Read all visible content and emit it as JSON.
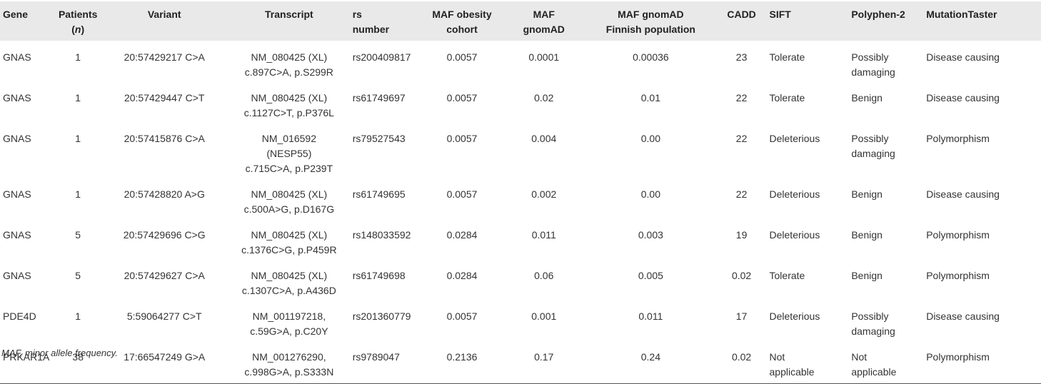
{
  "table": {
    "headers": [
      [
        "Gene"
      ],
      [
        "Patients",
        "(n)"
      ],
      [
        "Variant"
      ],
      [
        "Transcript"
      ],
      [
        "rs",
        "number"
      ],
      [
        "MAF obesity",
        "cohort"
      ],
      [
        "MAF",
        "gnomAD"
      ],
      [
        "MAF gnomAD",
        "Finnish population"
      ],
      [
        "CADD"
      ],
      [
        "SIFT"
      ],
      [
        "Polyphen-2"
      ],
      [
        "MutationTaster"
      ]
    ],
    "rows": [
      [
        [
          "GNAS"
        ],
        [
          "1"
        ],
        [
          "20:57429217 C>A"
        ],
        [
          "NM_080425 (XL)",
          "c.897C>A, p.S299R"
        ],
        [
          "rs200409817"
        ],
        [
          "0.0057"
        ],
        [
          "0.0001"
        ],
        [
          "0.00036"
        ],
        [
          "23"
        ],
        [
          "Tolerate"
        ],
        [
          "Possibly",
          "damaging"
        ],
        [
          "Disease causing"
        ]
      ],
      [
        [
          "GNAS"
        ],
        [
          "1"
        ],
        [
          "20:57429447 C>T"
        ],
        [
          "NM_080425 (XL)",
          "c.1127C>T, p.P376L"
        ],
        [
          "rs61749697"
        ],
        [
          "0.0057"
        ],
        [
          "0.02"
        ],
        [
          "0.01"
        ],
        [
          "22"
        ],
        [
          "Tolerate"
        ],
        [
          "Benign"
        ],
        [
          "Disease causing"
        ]
      ],
      [
        [
          "GNAS"
        ],
        [
          "1"
        ],
        [
          "20:57415876 C>A"
        ],
        [
          "NM_016592",
          "(NESP55)",
          "c.715C>A, p.P239T"
        ],
        [
          "rs79527543"
        ],
        [
          "0.0057"
        ],
        [
          "0.004"
        ],
        [
          "0.00"
        ],
        [
          "22"
        ],
        [
          "Deleterious"
        ],
        [
          "Possibly",
          "damaging"
        ],
        [
          "Polymorphism"
        ]
      ],
      [
        [
          "GNAS"
        ],
        [
          "1"
        ],
        [
          "20:57428820 A>G"
        ],
        [
          "NM_080425 (XL)",
          "c.500A>G, p.D167G"
        ],
        [
          "rs61749695"
        ],
        [
          "0.0057"
        ],
        [
          "0.002"
        ],
        [
          "0.00"
        ],
        [
          "22"
        ],
        [
          "Deleterious"
        ],
        [
          "Benign"
        ],
        [
          "Disease causing"
        ]
      ],
      [
        [
          "GNAS"
        ],
        [
          "5"
        ],
        [
          "20:57429696 C>G"
        ],
        [
          "NM_080425 (XL)",
          "c.1376C>G, p.P459R"
        ],
        [
          "rs148033592"
        ],
        [
          "0.0284"
        ],
        [
          "0.011"
        ],
        [
          "0.003"
        ],
        [
          "19"
        ],
        [
          "Deleterious"
        ],
        [
          "Benign"
        ],
        [
          "Polymorphism"
        ]
      ],
      [
        [
          "GNAS"
        ],
        [
          "5"
        ],
        [
          "20:57429627 C>A"
        ],
        [
          "NM_080425 (XL)",
          "c.1307C>A, p.A436D"
        ],
        [
          "rs61749698"
        ],
        [
          "0.0284"
        ],
        [
          "0.06"
        ],
        [
          "0.005"
        ],
        [
          "0.02"
        ],
        [
          "Tolerate"
        ],
        [
          "Benign"
        ],
        [
          "Polymorphism"
        ]
      ],
      [
        [
          "PDE4D"
        ],
        [
          "1"
        ],
        [
          "5:59064277 C>T"
        ],
        [
          "NM_001197218,",
          "c.59G>A, p.C20Y"
        ],
        [
          "rs201360779"
        ],
        [
          "0.0057"
        ],
        [
          "0.001"
        ],
        [
          "0.011"
        ],
        [
          "17"
        ],
        [
          "Deleterious"
        ],
        [
          "Possibly",
          "damaging"
        ],
        [
          "Disease causing"
        ]
      ],
      [
        [
          "PRKAR1A"
        ],
        [
          "38"
        ],
        [
          "17:66547249 G>A"
        ],
        [
          "NM_001276290,",
          "c.998G>A, p.S333N"
        ],
        [
          "rs9789047"
        ],
        [
          "0.2136"
        ],
        [
          "0.17"
        ],
        [
          "0.24"
        ],
        [
          "0.02"
        ],
        [
          "Not",
          "applicable"
        ],
        [
          "Not",
          "applicable"
        ],
        [
          "Polymorphism"
        ]
      ]
    ]
  },
  "footnote": "MAF, minor allele frequency."
}
